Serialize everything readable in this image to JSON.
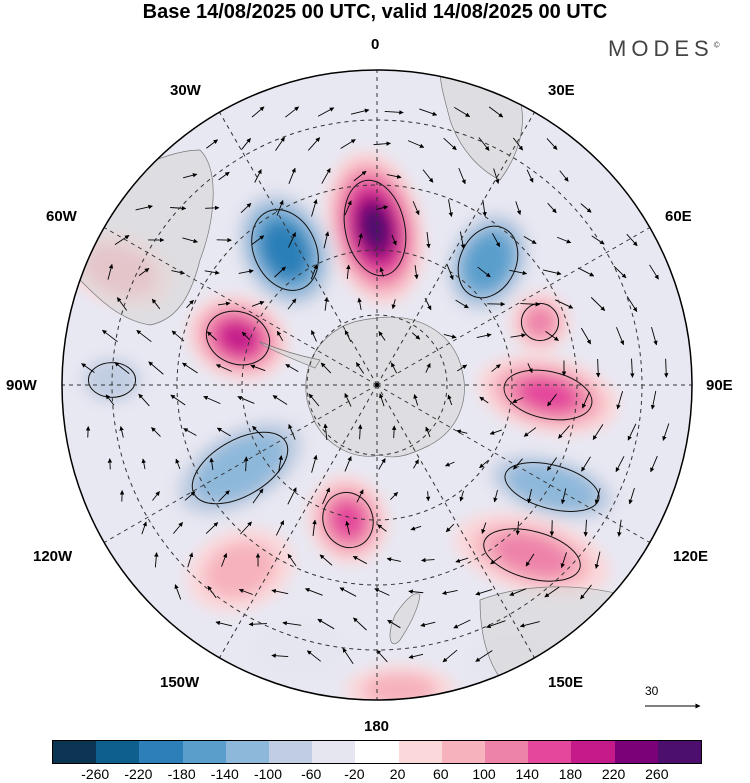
{
  "title": "Base 14/08/2025 00 UTC, valid 14/08/2025 00 UTC",
  "brand": "MODES",
  "brand_mark": "©",
  "longitude_labels": {
    "top": "0",
    "top_right": "30E",
    "right_upper": "60E",
    "right": "90E",
    "right_lower": "120E",
    "bottom_right": "150E",
    "bottom": "180",
    "bottom_left": "150W",
    "left_lower": "120W",
    "left": "90W",
    "left_upper": "60W",
    "top_left": "30W"
  },
  "vector_reference": "30",
  "colorbar": {
    "colors": [
      "#0b3552",
      "#0e5f8e",
      "#2c7fb8",
      "#5a9fcc",
      "#8eb8da",
      "#c1cde2",
      "#e6e6f0",
      "#ffffff",
      "#fbd8da",
      "#f6b2bd",
      "#ee83aa",
      "#e4479b",
      "#c51b8a",
      "#7a0177",
      "#4d0f6e"
    ],
    "ticks": [
      "-260",
      "-220",
      "-180",
      "-140",
      "-100",
      "-60",
      "-20",
      "20",
      "60",
      "100",
      "140",
      "180",
      "220",
      "260"
    ]
  },
  "map_anomalies": [
    {
      "sign": "positive",
      "value": 260
    },
    {
      "sign": "negative",
      "value": -220
    },
    {
      "sign": "negative",
      "value": -180
    },
    {
      "sign": "positive",
      "value": 180
    },
    {
      "sign": "negative",
      "value": -100
    },
    {
      "sign": "positive",
      "value": 140
    },
    {
      "sign": "negative",
      "value": -140
    },
    {
      "sign": "negative",
      "value": -140
    },
    {
      "sign": "positive",
      "value": 140
    },
    {
      "sign": "positive",
      "value": 100
    },
    {
      "sign": "positive",
      "value": 100
    },
    {
      "sign": "positive",
      "value": 60
    },
    {
      "sign": "negative",
      "value": -60
    },
    {
      "sign": "positive",
      "value": 60
    },
    {
      "sign": "positive",
      "value": 60
    },
    {
      "sign": "negative",
      "value": -60
    }
  ]
}
